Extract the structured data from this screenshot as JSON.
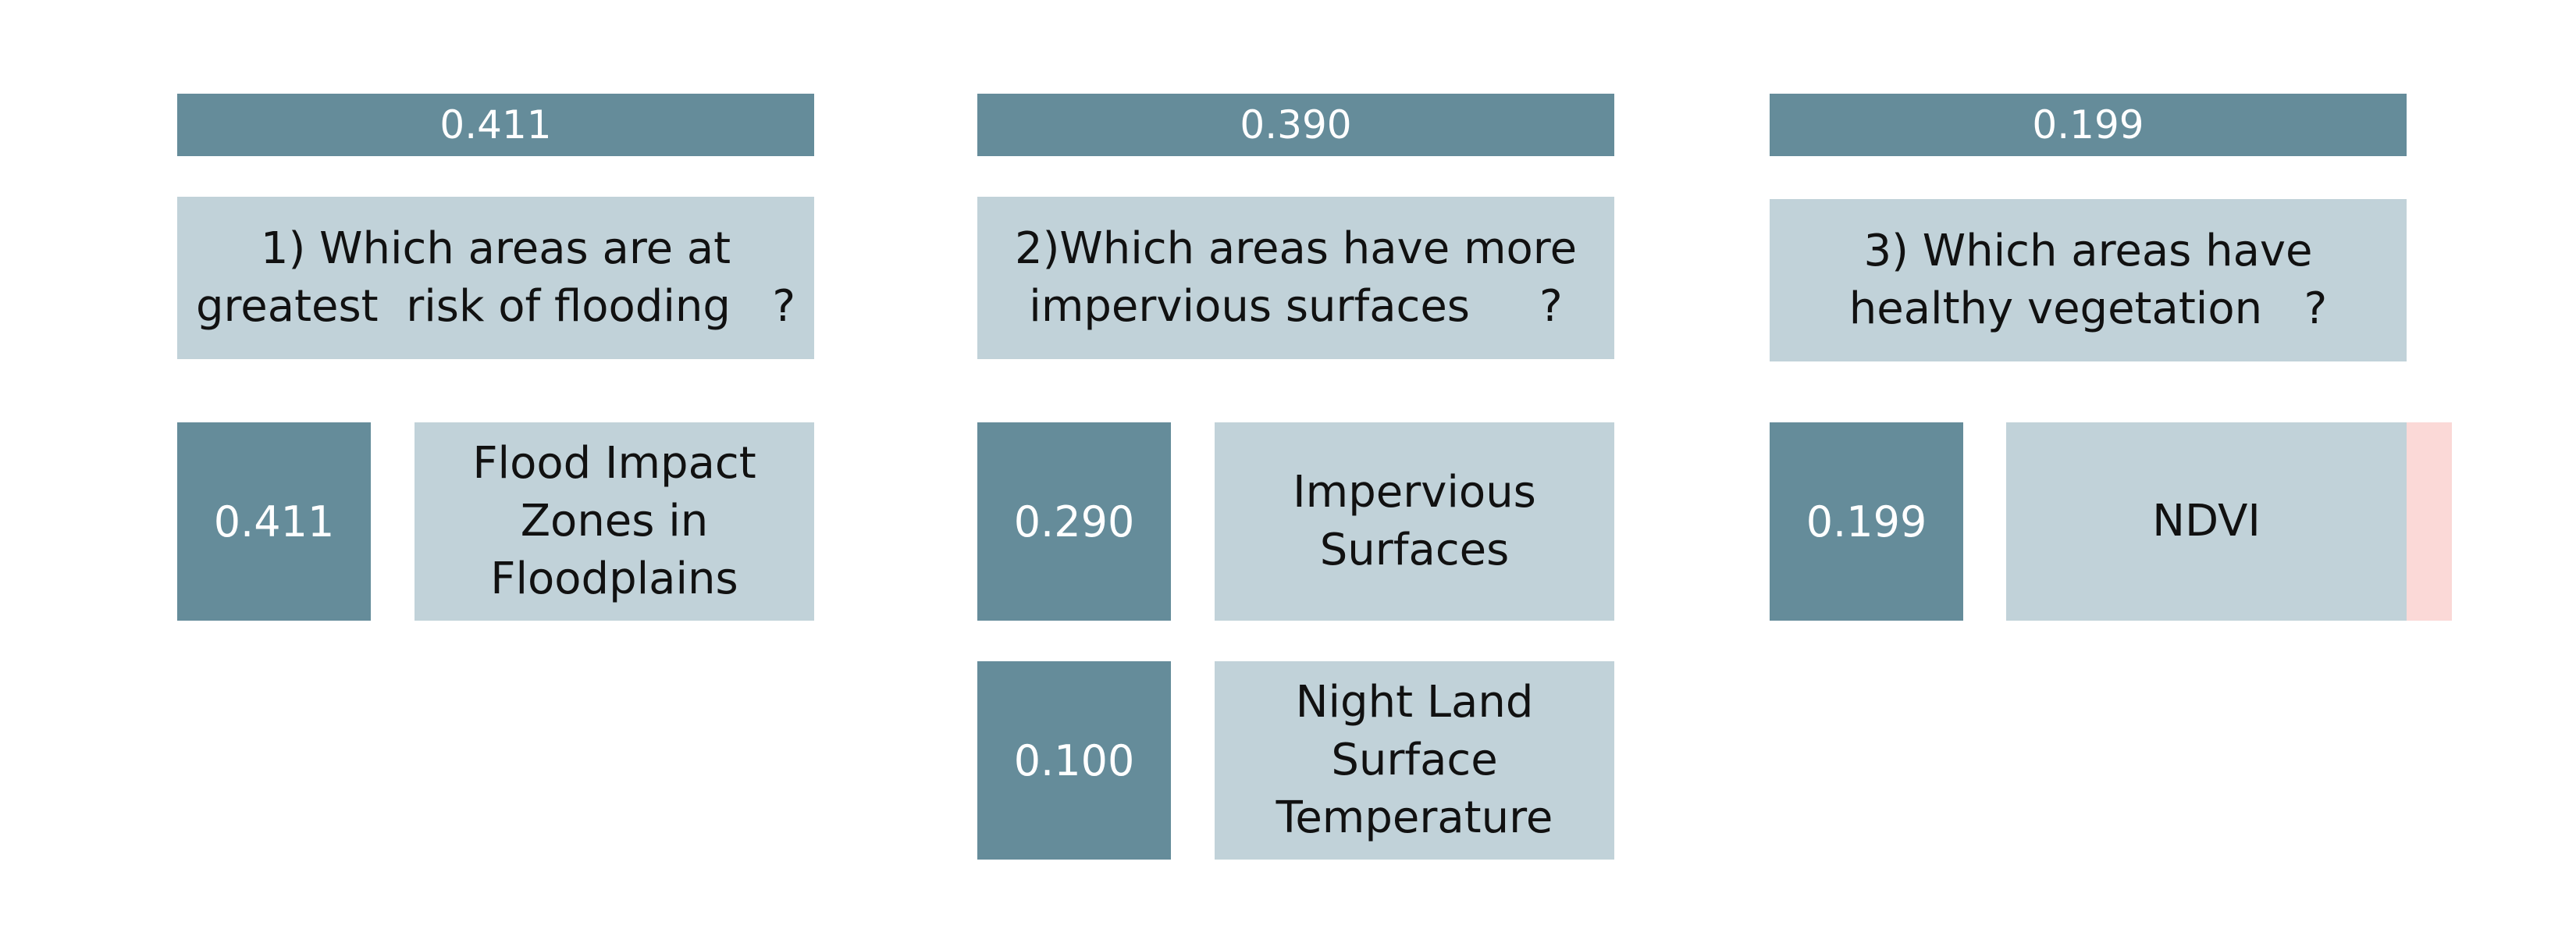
{
  "columns": [
    {
      "score": "0.411",
      "question": "1) Which areas are at\ngreatest  risk of flooding   ?",
      "indicators": [
        {
          "weight": "0.411",
          "name": "Flood Impact\nZones in\nFloodplains"
        }
      ]
    },
    {
      "score": "0.390",
      "question": "2)Which areas have more\nimpervious surfaces     ?",
      "indicators": [
        {
          "weight": "0.290",
          "name": "Impervious\nSurfaces"
        },
        {
          "weight": "0.100",
          "name": "Night Land\nSurface\nTemperature"
        }
      ]
    },
    {
      "score": "0.199",
      "question": "3) Which areas have\nhealthy vegetation   ?",
      "indicators": [
        {
          "weight": "0.199",
          "name": "NDVI"
        }
      ]
    }
  ],
  "colors": {
    "dark": "#658c9a",
    "light": "#c1d2d9",
    "accent": "#fbd9d7"
  }
}
